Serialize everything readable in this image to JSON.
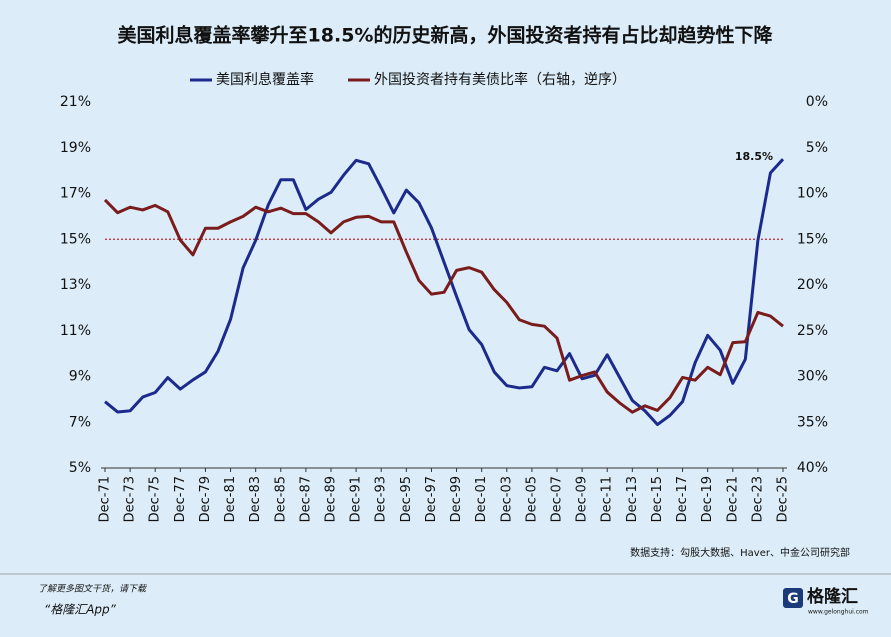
{
  "chart_data": {
    "type": "line",
    "title": "美国利息覆盖率攀升至18.5%的历史新高，外国投资者持有占比却趋势性下降",
    "categories": [
      "Dec-71",
      null,
      "Dec-73",
      null,
      "Dec-75",
      null,
      "Dec-77",
      null,
      "Dec-79",
      null,
      "Dec-81",
      null,
      "Dec-83",
      null,
      "Dec-85",
      null,
      "Dec-87",
      null,
      "Dec-89",
      null,
      "Dec-91",
      null,
      "Dec-93",
      null,
      "Dec-95",
      null,
      "Dec-97",
      null,
      "Dec-99",
      null,
      "Dec-01",
      null,
      "Dec-03",
      null,
      "Dec-05",
      null,
      "Dec-07",
      null,
      "Dec-09",
      null,
      "Dec-11",
      null,
      "Dec-13",
      null,
      "Dec-15",
      null,
      "Dec-17",
      null,
      "Dec-19",
      null,
      "Dec-21",
      null,
      "Dec-23",
      null,
      "Dec-25"
    ],
    "series": [
      {
        "name": "美国利息覆盖率",
        "color": "#1c2a8c",
        "values": [
          7.9,
          7.45,
          7.5,
          8.1,
          8.3,
          8.95,
          8.45,
          8.85,
          9.2,
          10.1,
          11.5,
          13.75,
          14.95,
          16.5,
          17.6,
          17.6,
          16.3,
          16.75,
          17.05,
          17.8,
          18.45,
          18.3,
          17.25,
          16.15,
          17.15,
          16.6,
          15.5,
          14.0,
          12.5,
          11.05,
          10.4,
          9.2,
          8.6,
          8.5,
          8.55,
          9.4,
          9.25,
          10.0,
          8.9,
          9.05,
          9.95,
          8.95,
          7.95,
          7.5,
          6.9,
          7.3,
          7.9,
          9.6,
          10.8,
          10.15,
          8.7,
          9.75,
          14.95,
          17.9,
          18.5
        ]
      },
      {
        "name": "外国投资者持有美债比率（右轴，逆序）",
        "color": "#7a1c1c",
        "axis": "y2",
        "values": [
          10.7,
          12.1,
          11.5,
          11.8,
          11.3,
          12.0,
          15.1,
          16.7,
          13.8,
          13.8,
          13.1,
          12.5,
          11.5,
          12.0,
          11.6,
          12.2,
          12.2,
          13.1,
          14.3,
          13.1,
          12.6,
          12.5,
          13.1,
          13.1,
          16.4,
          19.5,
          21.0,
          20.8,
          18.4,
          18.1,
          18.6,
          20.5,
          21.9,
          23.8,
          24.3,
          24.5,
          25.8,
          30.4,
          29.9,
          29.5,
          31.7,
          32.9,
          33.9,
          33.2,
          33.7,
          32.3,
          30.1,
          30.4,
          29.0,
          29.8,
          26.3,
          26.2,
          23.0,
          23.4,
          24.5
        ]
      }
    ],
    "ylim": [
      5,
      21
    ],
    "yticks": [
      {
        "value": 5,
        "label": "5%"
      },
      {
        "value": 7,
        "label": "7%"
      },
      {
        "value": 9,
        "label": "9%"
      },
      {
        "value": 11,
        "label": "11%"
      },
      {
        "value": 13,
        "label": "13%"
      },
      {
        "value": 15,
        "label": "15%"
      },
      {
        "value": 17,
        "label": "17%"
      },
      {
        "value": 19,
        "label": "19%"
      },
      {
        "value": 21,
        "label": "21%"
      }
    ],
    "y2lim": [
      0,
      40
    ],
    "y2_reversed": true,
    "y2ticks": [
      {
        "value": 0,
        "label": "0%"
      },
      {
        "value": 5,
        "label": "5%"
      },
      {
        "value": 10,
        "label": "10%"
      },
      {
        "value": 15,
        "label": "15%"
      },
      {
        "value": 20,
        "label": "20%"
      },
      {
        "value": 25,
        "label": "25%"
      },
      {
        "value": 30,
        "label": "30%"
      },
      {
        "value": 35,
        "label": "35%"
      },
      {
        "value": 40,
        "label": "40%"
      }
    ],
    "reference_line": {
      "value": 15,
      "color": "#c0282d"
    },
    "annotation": {
      "text": "18.5%",
      "series": 0,
      "index": 54
    },
    "legend": "top",
    "grid": false,
    "source": "数据支持：勾股大数据、Haver、中金公司研究部"
  },
  "footer": {
    "line1": "了解更多图文干货，请下载",
    "line2": "“格隆汇App”",
    "logo": "格隆汇",
    "logo_url": "www.gelonghui.com"
  }
}
